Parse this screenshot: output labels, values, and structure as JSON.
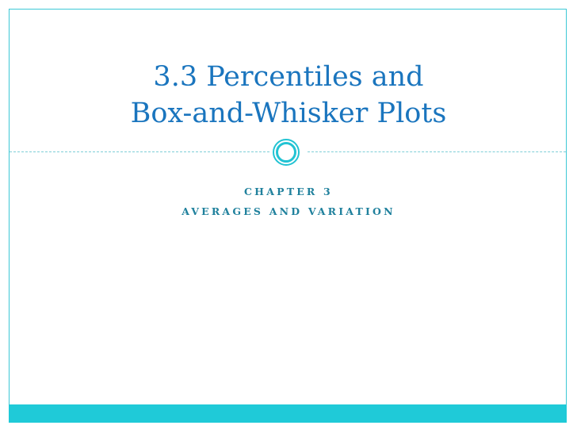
{
  "slide": {
    "title_lines": [
      "3.3 Percentiles and",
      "Box-and-Whisker Plots"
    ],
    "subtitle_lines": [
      "CHAPTER 3",
      "AVERAGES AND VARIATION"
    ],
    "ornament_icon": "double-circle-icon",
    "colors": {
      "title": "#1a75be",
      "subtitle": "#20819d",
      "accent": "#1fcad8",
      "frame": "#3cc8d6"
    }
  }
}
